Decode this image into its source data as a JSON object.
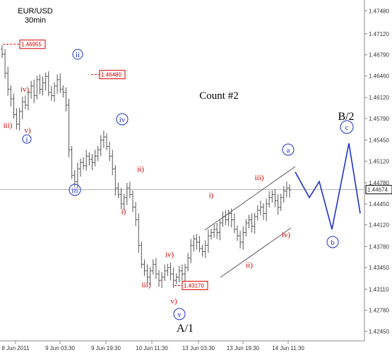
{
  "chart_data": {
    "type": "candlestick",
    "title": "EUR/USD",
    "subtitle": "30min",
    "annotation": "Count #2",
    "price_axis": {
      "ticks": [
        "1.47480",
        "1.47120",
        "1.46790",
        "1.46460",
        "1.46120",
        "1.45790",
        "1.45450",
        "1.45120",
        "1.44780",
        "1.44450",
        "1.44120",
        "1.43780",
        "1.43450",
        "1.43110",
        "1.42780",
        "1.42450"
      ],
      "current_price": "1.44674"
    },
    "time_axis": {
      "ticks": [
        "8 Jun 2011",
        "9 Jun 03:30",
        "9 Jun 19:30",
        "10 Jun 11:30",
        "13 Jun 03:30",
        "13 Jun 19:30",
        "14 Jun 11:30"
      ]
    },
    "price_labels": [
      "1.46955",
      "1.46480",
      "1.43170"
    ],
    "wave_labels_red": [
      "iii)",
      "iv)",
      "v)",
      "ii)",
      "i)",
      "iv)",
      "iii)",
      "v)",
      "i)",
      "iii)",
      "ii)",
      "iv)"
    ],
    "wave_labels_blue": [
      "ii",
      "i",
      "iv",
      "iii",
      "v",
      "a",
      "b",
      "c"
    ],
    "degree_labels": [
      "A/1",
      "B/2"
    ],
    "series": [
      {
        "name": "EUR/USD",
        "close_path": [
          1.468,
          1.465,
          1.4625,
          1.461,
          1.4585,
          1.457,
          1.459,
          1.4605,
          1.46,
          1.462,
          1.463,
          1.4615,
          1.464,
          1.4625,
          1.4635,
          1.4645,
          1.462,
          1.4615,
          1.463,
          1.464,
          1.4625,
          1.462,
          1.46,
          1.453,
          1.449,
          1.448,
          1.45,
          1.451,
          1.4505,
          1.452,
          1.4515,
          1.451,
          1.452,
          1.453,
          1.4545,
          1.455,
          1.4535,
          1.452,
          1.45,
          1.447,
          1.446,
          1.4445,
          1.4455,
          1.447,
          1.446,
          1.444,
          1.442,
          1.438,
          1.435,
          1.434,
          1.433,
          1.434,
          1.435,
          1.4335,
          1.4325,
          1.433,
          1.434,
          1.4345,
          1.4335,
          1.4325,
          1.433,
          1.434,
          1.4335,
          1.4345,
          1.436,
          1.438,
          1.439,
          1.4385,
          1.4375,
          1.437,
          1.438,
          1.4395,
          1.44,
          1.4405,
          1.44,
          1.4415,
          1.4425,
          1.442,
          1.443,
          1.442,
          1.4405,
          1.4395,
          1.4385,
          1.44,
          1.4415,
          1.442,
          1.441,
          1.4425,
          1.4435,
          1.444,
          1.443,
          1.4445,
          1.4455,
          1.446,
          1.445,
          1.444,
          1.4455,
          1.4465,
          1.447,
          1.4467
        ]
      },
      {
        "name": "projection",
        "path": [
          1.4495,
          1.4455,
          1.448,
          1.4405,
          1.454,
          1.443
        ]
      }
    ]
  }
}
